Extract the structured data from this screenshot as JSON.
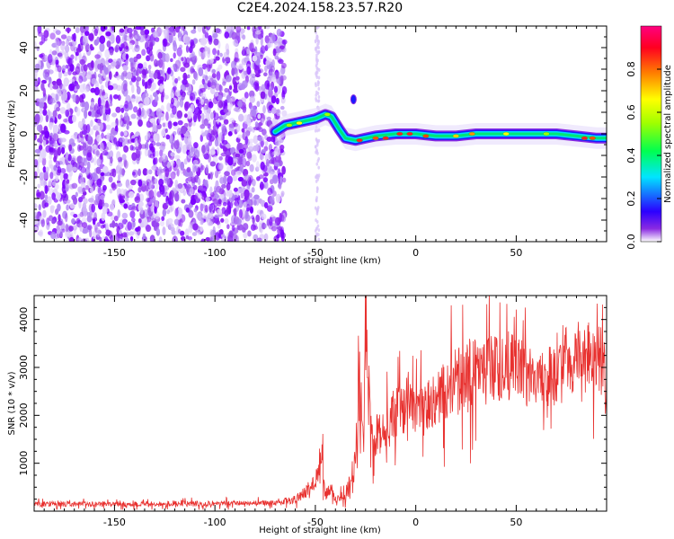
{
  "title": "C2E4.2024.158.23.57.R20",
  "chart_data": [
    {
      "type": "heatmap",
      "xlabel": "Height of straight line (km)",
      "ylabel": "Frequency (Hz)",
      "xlim": [
        -190,
        95
      ],
      "ylim": [
        -50,
        50
      ],
      "xticks": [
        -150,
        -100,
        -50,
        0,
        50
      ],
      "yticks": [
        -40,
        -20,
        0,
        20,
        40
      ],
      "colorbar": {
        "label": "Normalized spectral amplitude",
        "range": [
          0.0,
          1.0
        ],
        "ticks": [
          0.0,
          0.2,
          0.4,
          0.6,
          0.8
        ]
      },
      "noise_region_x": [
        -190,
        -68
      ],
      "signal_track": {
        "x": [
          -70,
          -65,
          -60,
          -55,
          -50,
          -45,
          -42,
          -38,
          -35,
          -30,
          -25,
          -20,
          -10,
          0,
          10,
          20,
          30,
          40,
          50,
          60,
          70,
          80,
          90,
          95
        ],
        "frequency_hz": [
          1,
          4,
          5,
          6,
          7,
          9,
          8,
          2,
          -2,
          -3,
          -2,
          -1,
          0,
          0,
          -1,
          -1,
          0,
          0,
          0,
          0,
          0,
          -1,
          -2,
          -2
        ]
      },
      "grid": false
    },
    {
      "type": "line",
      "xlabel": "Height of straight line (km)",
      "ylabel": "SNR (10 * v/v)",
      "xlim": [
        -190,
        95
      ],
      "ylim": [
        0,
        4500
      ],
      "xticks": [
        -150,
        -100,
        -50,
        0,
        50
      ],
      "yticks": [
        1000,
        2000,
        3000,
        4000
      ],
      "line_color": "#e8312f",
      "series": [
        {
          "x": [
            -190,
            -150,
            -100,
            -70,
            -60,
            -55,
            -50,
            -47,
            -45,
            -42,
            -40,
            -35,
            -30,
            -28,
            -26,
            -25,
            -22,
            -20,
            -15,
            -10,
            -5,
            0,
            10,
            20,
            30,
            40,
            50,
            60,
            70,
            80,
            90,
            95
          ],
          "y": [
            150,
            150,
            160,
            170,
            250,
            400,
            600,
            1200,
            350,
            450,
            250,
            350,
            1000,
            3800,
            1200,
            4100,
            1800,
            1600,
            1700,
            2000,
            2300,
            2000,
            2300,
            2700,
            2900,
            3000,
            3000,
            2700,
            3000,
            3200,
            3300,
            2700
          ]
        }
      ],
      "grid": false
    }
  ]
}
